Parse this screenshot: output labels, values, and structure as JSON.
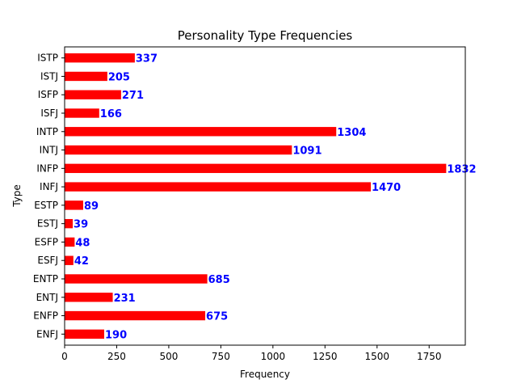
{
  "chart_data": {
    "type": "bar",
    "orientation": "horizontal",
    "title": "Personality Type Frequencies",
    "xlabel": "Frequency",
    "ylabel": "Type",
    "categories": [
      "ENFJ",
      "ENFP",
      "ENTJ",
      "ENTP",
      "ESFJ",
      "ESFP",
      "ESTJ",
      "ESTP",
      "INFJ",
      "INFP",
      "INTJ",
      "INTP",
      "ISFJ",
      "ISFP",
      "ISTJ",
      "ISTP"
    ],
    "values": [
      190,
      675,
      231,
      685,
      42,
      48,
      39,
      89,
      1470,
      1832,
      1091,
      1304,
      166,
      271,
      205,
      337
    ],
    "xlim": [
      0,
      1923.6
    ],
    "xticks": [
      0,
      250,
      500,
      750,
      1000,
      1250,
      1500,
      1750
    ],
    "grid": false,
    "legend": "none",
    "bar_color": "#ff0000",
    "label_color": "#0000ff"
  }
}
